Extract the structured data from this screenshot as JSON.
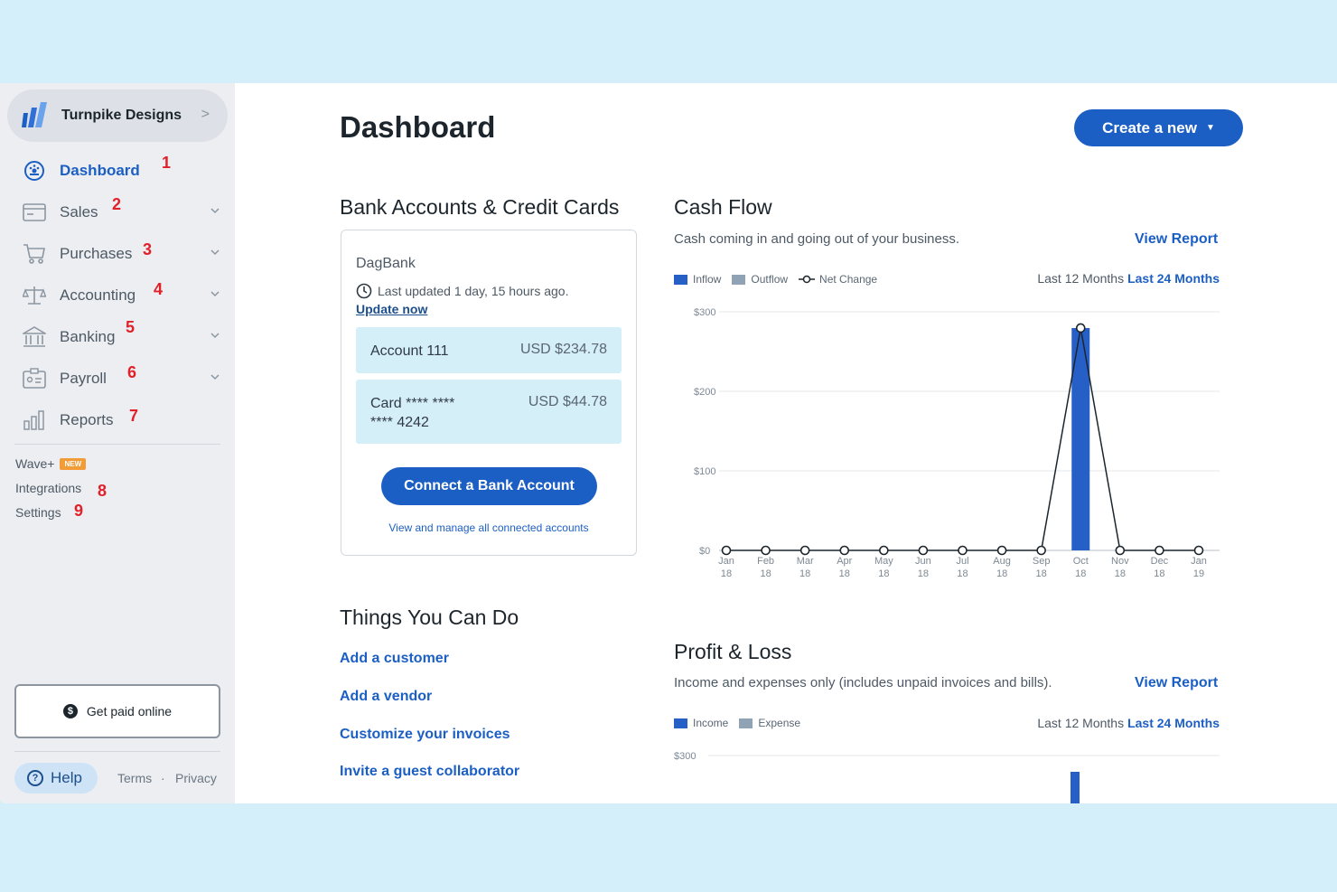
{
  "sidebar": {
    "business_name": "Turnpike Designs",
    "nav": [
      {
        "label": "Dashboard",
        "num": "1"
      },
      {
        "label": "Sales",
        "num": "2"
      },
      {
        "label": "Purchases",
        "num": "3"
      },
      {
        "label": "Accounting",
        "num": "4"
      },
      {
        "label": "Banking",
        "num": "5"
      },
      {
        "label": "Payroll",
        "num": "6"
      },
      {
        "label": "Reports",
        "num": "7"
      }
    ],
    "links": [
      {
        "label": "Wave+",
        "badge": "NEW"
      },
      {
        "label": "Integrations",
        "num": "8"
      },
      {
        "label": "Settings",
        "num": "9"
      }
    ],
    "get_paid": "Get paid online",
    "help": "Help",
    "terms": "Terms",
    "sep": "·",
    "privacy": "Privacy"
  },
  "header": {
    "title": "Dashboard",
    "create_label": "Create a new"
  },
  "bank": {
    "title": "Bank Accounts & Credit Cards",
    "bank_name": "DagBank",
    "last_updated": "Last updated 1 day, 15 hours ago.",
    "update_now": "Update now",
    "accounts": [
      {
        "name": "Account 111",
        "value": "USD $234.78"
      },
      {
        "name_line1": "Card **** ****",
        "name_line2": "**** 4242",
        "value": "USD $44.78"
      }
    ],
    "connect_label": "Connect a Bank Account",
    "manage_label": "View and manage all connected accounts"
  },
  "things": {
    "title": "Things You Can Do",
    "links": [
      "Add a customer",
      "Add a vendor",
      "Customize your invoices",
      "Invite a guest collaborator"
    ]
  },
  "cash_flow": {
    "title": "Cash Flow",
    "subtitle": "Cash coming in and going out of your business.",
    "view_report": "View Report",
    "legend": [
      "Inflow",
      "Outflow",
      "Net Change"
    ],
    "period_current": "Last 12 Months",
    "period_alt": "Last 24 Months",
    "colors": {
      "inflow": "#2660c6",
      "outflow": "#8fa3b4",
      "net": "#1c252c"
    }
  },
  "profit_loss": {
    "title": "Profit & Loss",
    "subtitle": "Income and expenses only (includes unpaid invoices and bills).",
    "view_report": "View Report",
    "legend": [
      "Income",
      "Expense"
    ],
    "period_current": "Last 12 Months",
    "period_alt": "Last 24 Months",
    "ytick_top": "$300"
  },
  "chart_data": {
    "type": "bar",
    "title": "Cash Flow",
    "categories": [
      [
        "Jan",
        "18"
      ],
      [
        "Feb",
        "18"
      ],
      [
        "Mar",
        "18"
      ],
      [
        "Apr",
        "18"
      ],
      [
        "May",
        "18"
      ],
      [
        "Jun",
        "18"
      ],
      [
        "Jul",
        "18"
      ],
      [
        "Aug",
        "18"
      ],
      [
        "Sep",
        "18"
      ],
      [
        "Oct",
        "18"
      ],
      [
        "Nov",
        "18"
      ],
      [
        "Dec",
        "18"
      ],
      [
        "Jan",
        "19"
      ]
    ],
    "series": [
      {
        "name": "Inflow",
        "kind": "bar",
        "values": [
          0,
          0,
          0,
          0,
          0,
          0,
          0,
          0,
          0,
          279.56,
          0,
          0,
          0
        ]
      },
      {
        "name": "Outflow",
        "kind": "bar",
        "values": [
          0,
          0,
          0,
          0,
          0,
          0,
          0,
          0,
          0,
          0,
          0,
          0,
          0
        ]
      },
      {
        "name": "Net Change",
        "kind": "line",
        "values": [
          0,
          0,
          0,
          0,
          0,
          0,
          0,
          0,
          0,
          279.56,
          0,
          0,
          0
        ]
      }
    ],
    "yticks": [
      "$0",
      "$100",
      "$200",
      "$300"
    ],
    "ylim": [
      0,
      300
    ],
    "grid": true,
    "legend_position": "top-left"
  }
}
